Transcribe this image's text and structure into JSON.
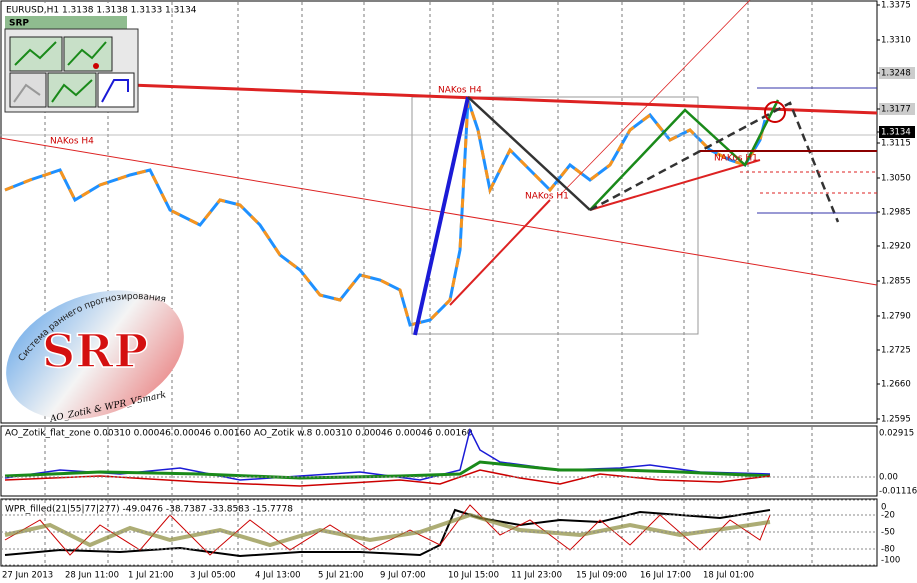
{
  "header": {
    "symbol": "EURUSD,H1  1.3138 1.3138 1.3133 1.3134",
    "panel": "SRP"
  },
  "price_axis": [
    "1.3375",
    "1.3310",
    "1.3248",
    "1.3177",
    "1.3134",
    "1.3115",
    "1.3050",
    "1.2985",
    "1.2920",
    "1.2855",
    "1.2790",
    "1.2725",
    "1.2660",
    "1.2595"
  ],
  "annotations": [
    "NAKos H4",
    "NAKos H4",
    "NAKos H1",
    "NAKos H1"
  ],
  "logo": {
    "arc_text": "Система раннего прогнозирования",
    "title": "SRP",
    "footer": "AO_Zotik & WPR_V5mark"
  },
  "ao": {
    "label": "AO_Zotik_flat_zone 0.00310 0.00046 0.00046 0.00160  AO_Zotik w.8 0.00310 0.00046 0.00046 0.00160",
    "axis": [
      "0.02915",
      "0.00",
      "-0.01116"
    ]
  },
  "wpr": {
    "label": "WPR_filled(21|55|77|277) -49.0476 -38.7387 -33.8583 -15.7778",
    "axis": [
      "0",
      "-20",
      "-50",
      "-80",
      "-100"
    ]
  },
  "time_axis": [
    "27 Jun 2013",
    "28 Jun 11:00",
    "1 Jul 21:00",
    "3 Jul 05:00",
    "4 Jul 13:00",
    "5 Jul 21:00",
    "9 Jul 07:00",
    "10 Jul 15:00",
    "11 Jul 23:00",
    "15 Jul 09:00",
    "16 Jul 17:00",
    "18 Jul 01:00"
  ]
}
